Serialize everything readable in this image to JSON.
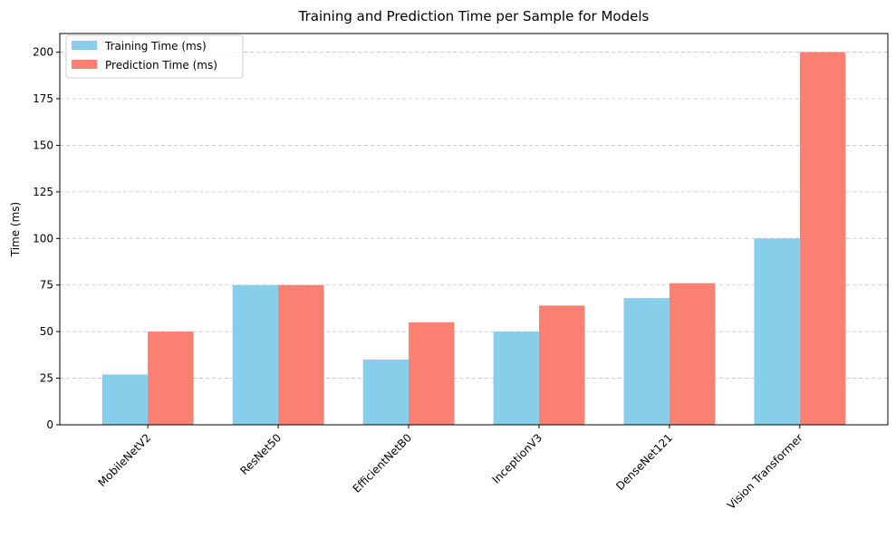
{
  "chart_data": {
    "type": "bar",
    "title": "Training and Prediction Time per Sample for Models",
    "xlabel": "",
    "ylabel": "Time (ms)",
    "categories": [
      "MobileNetV2",
      "ResNet50",
      "EfficientNetB0",
      "InceptionV3",
      "DenseNet121",
      "Vision Transformer"
    ],
    "series": [
      {
        "name": "Training Time (ms)",
        "color": "#87ceeb",
        "values": [
          27,
          75,
          35,
          50,
          68,
          100
        ]
      },
      {
        "name": "Prediction Time (ms)",
        "color": "#fa8072",
        "values": [
          50,
          75,
          55,
          64,
          76,
          200
        ]
      }
    ],
    "ylim": [
      0,
      210
    ],
    "yticks": [
      0,
      25,
      50,
      75,
      100,
      125,
      150,
      175,
      200
    ],
    "grid": "y-dashed",
    "legend_position": "top-left",
    "x_tick_rotation": 45
  }
}
